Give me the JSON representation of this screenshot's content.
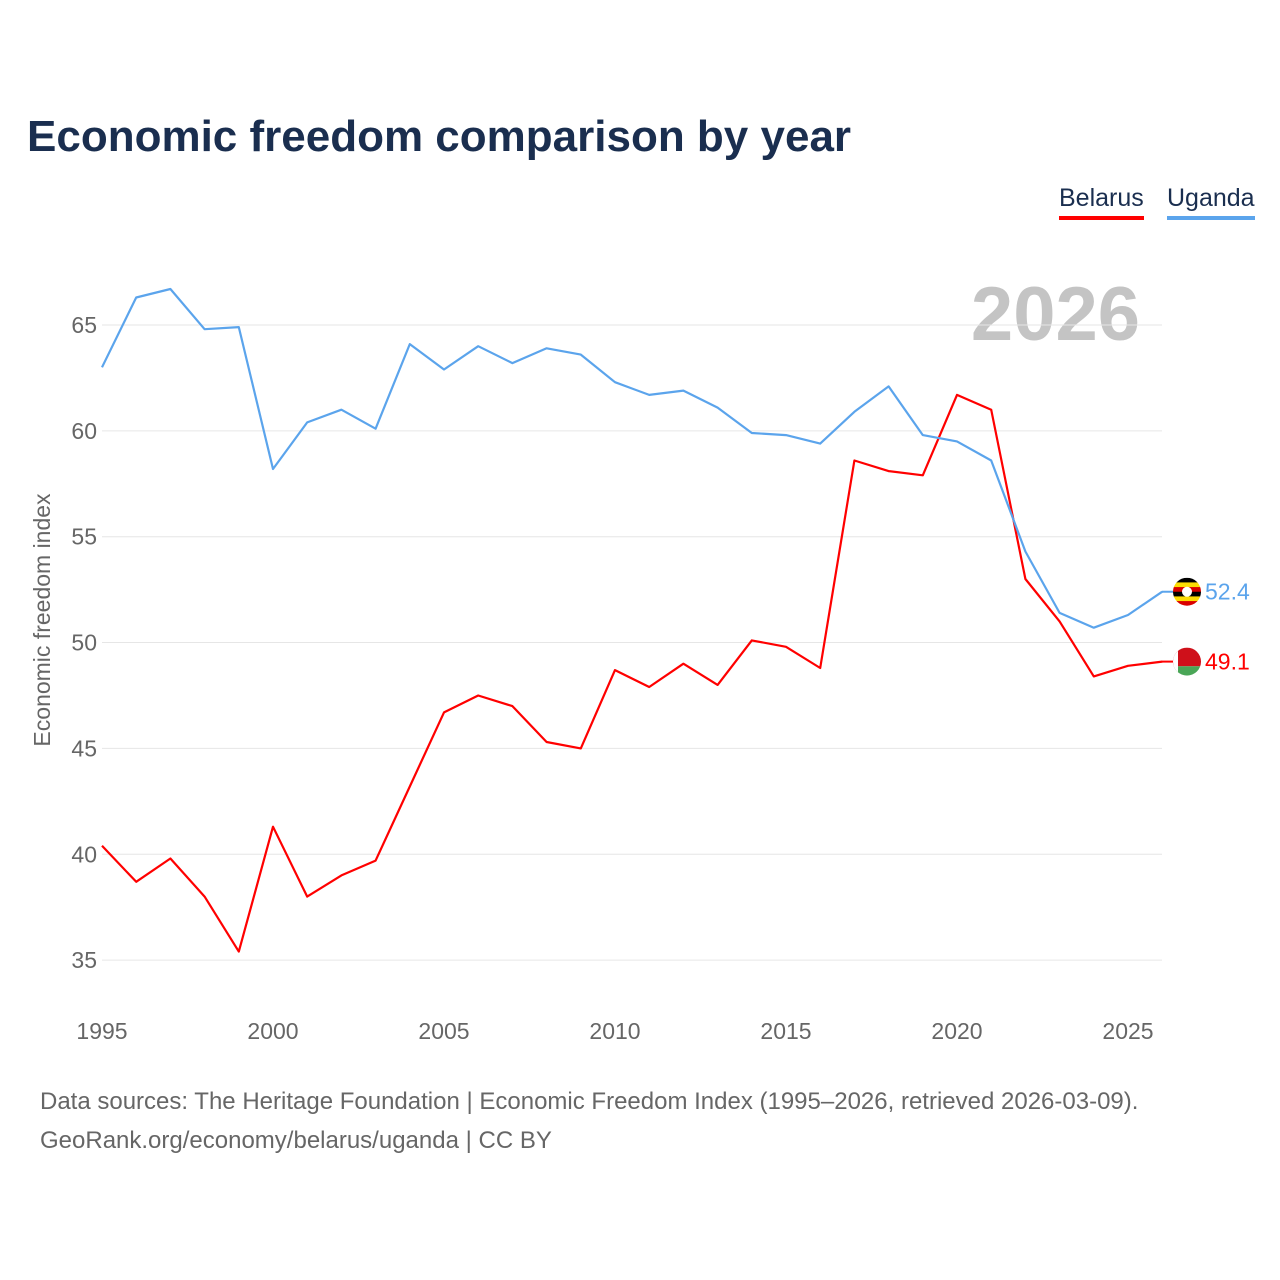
{
  "chart_data": {
    "type": "line",
    "title": "Economic freedom comparison by year",
    "xlabel": "",
    "ylabel": "Economic freedom index",
    "year_watermark": "2026",
    "x": [
      1995,
      1996,
      1997,
      1998,
      1999,
      2000,
      2001,
      2002,
      2003,
      2004,
      2005,
      2006,
      2007,
      2008,
      2009,
      2010,
      2011,
      2012,
      2013,
      2014,
      2015,
      2016,
      2017,
      2018,
      2019,
      2020,
      2021,
      2022,
      2023,
      2024,
      2025,
      2026
    ],
    "xticks": [
      "1995",
      "2000",
      "2005",
      "2010",
      "2015",
      "2020",
      "2025"
    ],
    "yticks": [
      "35",
      "40",
      "45",
      "50",
      "55",
      "60",
      "65"
    ],
    "ylim": [
      32.5,
      67.5
    ],
    "grid": true,
    "legend_position": "top-right",
    "series": [
      {
        "name": "Belarus",
        "color": "#ff0000",
        "end_label": "49.1",
        "values": [
          40.4,
          38.7,
          39.8,
          38.0,
          35.4,
          41.3,
          38.0,
          39.0,
          39.7,
          43.2,
          46.7,
          47.5,
          47.0,
          45.3,
          45.0,
          48.7,
          47.9,
          49.0,
          48.0,
          50.1,
          49.8,
          48.8,
          58.6,
          58.1,
          57.9,
          61.7,
          61.0,
          53.0,
          51.0,
          48.4,
          48.9,
          49.1
        ]
      },
      {
        "name": "Uganda",
        "color": "#5ba4ec",
        "end_label": "52.4",
        "values": [
          63.0,
          66.3,
          66.7,
          64.8,
          64.9,
          58.2,
          60.4,
          61.0,
          60.1,
          64.1,
          62.9,
          64.0,
          63.2,
          63.9,
          63.6,
          62.3,
          61.7,
          61.9,
          61.1,
          59.9,
          59.8,
          59.4,
          60.9,
          62.1,
          59.8,
          59.5,
          58.6,
          54.3,
          51.4,
          50.7,
          51.3,
          52.4
        ]
      }
    ]
  },
  "footer": {
    "line1": "Data sources: The Heritage Foundation | Economic Freedom Index (1995–2026, retrieved 2026-03-09).",
    "line2": "GeoRank.org/economy/belarus/uganda | CC BY"
  }
}
